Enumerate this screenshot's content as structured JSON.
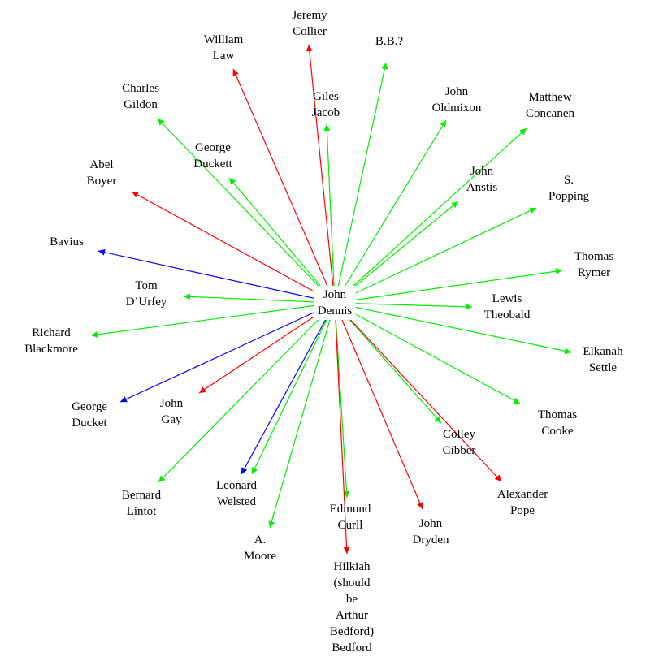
{
  "colors": {
    "green": "#00ee00",
    "red": "#ff0000",
    "blue": "#0000ff"
  },
  "center": {
    "id": "dennis",
    "lines": [
      "John",
      "Dennis"
    ]
  },
  "nodes": [
    {
      "id": "collier",
      "lines": [
        "Jeremy",
        "Collier"
      ],
      "color": "red"
    },
    {
      "id": "law",
      "lines": [
        "William",
        "Law"
      ],
      "color": "red"
    },
    {
      "id": "bb",
      "lines": [
        "B.B.?"
      ],
      "color": "green"
    },
    {
      "id": "gildon",
      "lines": [
        "Charles",
        "Gildon"
      ],
      "color": "green"
    },
    {
      "id": "jacob",
      "lines": [
        "Giles",
        "Jacob"
      ],
      "color": "green"
    },
    {
      "id": "oldmixon",
      "lines": [
        "John",
        "Oldmixon"
      ],
      "color": "green"
    },
    {
      "id": "concanen",
      "lines": [
        "Matthew",
        "Concanen"
      ],
      "color": "green"
    },
    {
      "id": "duckett",
      "lines": [
        "George",
        "Duckett"
      ],
      "color": "green"
    },
    {
      "id": "boyer",
      "lines": [
        "Abel",
        "Boyer"
      ],
      "color": "red"
    },
    {
      "id": "anstis",
      "lines": [
        "John",
        "Anstis"
      ],
      "color": "green"
    },
    {
      "id": "popping",
      "lines": [
        "S.",
        "Popping"
      ],
      "color": "green"
    },
    {
      "id": "bavius",
      "lines": [
        "Bavius"
      ],
      "color": "blue"
    },
    {
      "id": "rymer",
      "lines": [
        "Thomas",
        "Rymer"
      ],
      "color": "green"
    },
    {
      "id": "durfey",
      "lines": [
        "Tom",
        "D’Urfey"
      ],
      "color": "green"
    },
    {
      "id": "theobald",
      "lines": [
        "Lewis",
        "Theobald"
      ],
      "color": "green"
    },
    {
      "id": "blackmore",
      "lines": [
        "Richard",
        "Blackmore"
      ],
      "color": "green"
    },
    {
      "id": "settle",
      "lines": [
        "Elkanah",
        "Settle"
      ],
      "color": "green"
    },
    {
      "id": "ducket",
      "lines": [
        "George",
        "Ducket"
      ],
      "color": "blue"
    },
    {
      "id": "gay",
      "lines": [
        "John",
        "Gay"
      ],
      "color": "red"
    },
    {
      "id": "cooke",
      "lines": [
        "Thomas",
        "Cooke"
      ],
      "color": "green"
    },
    {
      "id": "cibber",
      "lines": [
        "Colley",
        "Cibber"
      ],
      "color": "green"
    },
    {
      "id": "lintot",
      "lines": [
        "Bernard",
        "Lintot"
      ],
      "color": "green"
    },
    {
      "id": "welsted",
      "lines": [
        "Leonard",
        "Welsted"
      ],
      "color": "blue"
    },
    {
      "id": "welsted2",
      "lines": [],
      "color": "green"
    },
    {
      "id": "pope",
      "lines": [
        "Alexander",
        "Pope"
      ],
      "color": "red"
    },
    {
      "id": "curll",
      "lines": [
        "Edmund",
        "Curll"
      ],
      "color": "green"
    },
    {
      "id": "dryden",
      "lines": [
        "John",
        "Dryden"
      ],
      "color": "red"
    },
    {
      "id": "moore",
      "lines": [
        "A.",
        "Moore"
      ],
      "color": "green"
    },
    {
      "id": "bedford",
      "lines": [
        "Hilkiah",
        "(should",
        "be",
        "Arthur",
        "Bedford)",
        "Bedford"
      ],
      "color": "red"
    }
  ]
}
